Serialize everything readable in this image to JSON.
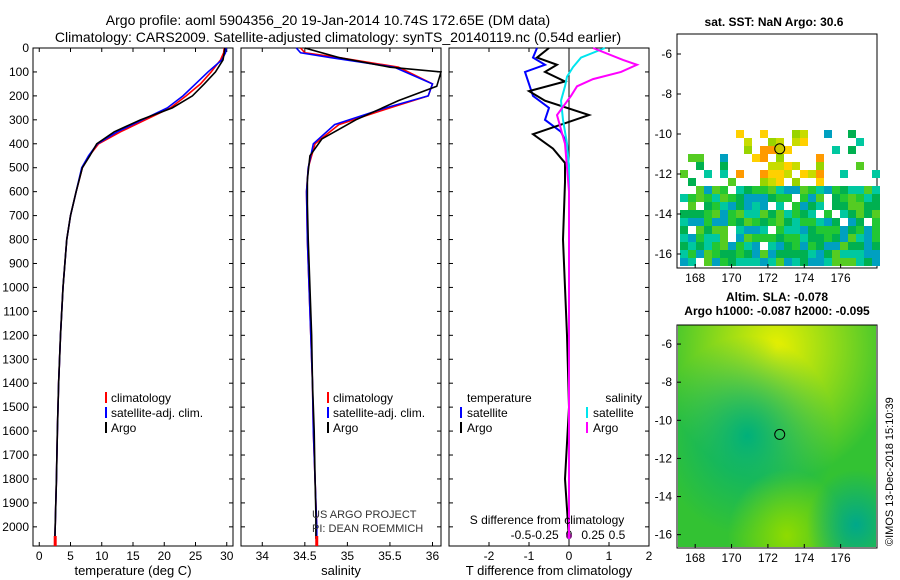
{
  "title_line1": "Argo profile: aoml 5904356_20 19-Jan-2014 10.74S 172.65E (DM data)",
  "title_line2": "Climatology: CARS2009. Satellite-adjusted climatology: synTS_20140119.nc (0.54d earlier)",
  "credit_line1": "US ARGO PROJECT",
  "credit_line2": "PI: DEAN ROEMMICH",
  "imos_stamp": "©IMOS 13-Dec-2018 15:10:39",
  "colors": {
    "climatology": "#ff0000",
    "satellite": "#0000ff",
    "argo": "#000000",
    "sal_satellite": "#00e5ee",
    "sal_argo": "#ff00ff"
  },
  "chart_data": [
    {
      "type": "line",
      "id": "temperature",
      "xlabel": "temperature (deg C)",
      "xlim": [
        -1,
        31
      ],
      "xticks": [
        0,
        5,
        10,
        15,
        20,
        25,
        30
      ],
      "ylim": [
        2080,
        0
      ],
      "yticks": [
        0,
        100,
        200,
        300,
        400,
        500,
        600,
        700,
        800,
        900,
        1000,
        1100,
        1200,
        1300,
        1400,
        1500,
        1600,
        1700,
        1800,
        1900,
        2000
      ],
      "legend": {
        "position": "lower-right",
        "labels": [
          "climatology",
          "satellite-adj. clim.",
          "Argo"
        ]
      },
      "series": [
        {
          "name": "climatology",
          "color": "#ff0000",
          "x": [
            29.6,
            29.5,
            29.0,
            27.5,
            25.8,
            23.5,
            21.0,
            17.0,
            13.0,
            9.5,
            8.0,
            6.9,
            5.9,
            5.0,
            4.4,
            3.8,
            3.4,
            3.1,
            2.9,
            2.75,
            2.65,
            2.55,
            2.5
          ],
          "y": [
            0,
            20,
            50,
            100,
            150,
            200,
            250,
            300,
            350,
            400,
            450,
            500,
            600,
            700,
            800,
            1000,
            1200,
            1400,
            1600,
            1800,
            1900,
            2000,
            2050
          ]
        },
        {
          "name": "satellite-adj. clim.",
          "color": "#0000ff",
          "x": [
            29.9,
            29.8,
            29.2,
            27.0,
            25.0,
            23.0,
            20.5,
            16.5,
            12.5,
            9.3,
            7.9,
            6.8,
            5.9,
            5.0,
            4.4,
            3.8,
            3.4,
            3.1,
            2.9,
            2.75,
            2.65,
            2.55,
            2.5
          ],
          "y": [
            0,
            20,
            50,
            100,
            150,
            200,
            250,
            300,
            350,
            400,
            450,
            500,
            600,
            700,
            800,
            1000,
            1200,
            1400,
            1600,
            1800,
            1900,
            2000,
            2050
          ]
        },
        {
          "name": "Argo",
          "color": "#000000",
          "x": [
            29.7,
            29.6,
            29.4,
            28.2,
            26.4,
            24.5,
            21.3,
            16.2,
            12.0,
            9.2,
            8.1,
            6.9,
            5.9,
            5.0,
            4.4,
            3.8,
            3.4,
            3.1,
            2.9,
            2.75,
            2.65,
            2.55,
            2.5
          ],
          "y": [
            0,
            20,
            50,
            100,
            150,
            200,
            250,
            300,
            350,
            400,
            450,
            500,
            600,
            700,
            800,
            1000,
            1200,
            1400,
            1600,
            1800,
            1900,
            2000,
            2050
          ]
        }
      ]
    },
    {
      "type": "line",
      "id": "salinity",
      "xlabel": "salinity",
      "xlim": [
        33.75,
        36.1
      ],
      "xticks": [
        34,
        34.5,
        35,
        35.5,
        36
      ],
      "ylim": [
        2080,
        0
      ],
      "legend": {
        "position": "lower-right",
        "labels": [
          "climatology",
          "satellite-adj. clim.",
          "Argo"
        ]
      },
      "series": [
        {
          "name": "climatology",
          "color": "#ff0000",
          "x": [
            34.45,
            34.5,
            34.9,
            35.6,
            36.0,
            35.95,
            35.5,
            34.9,
            34.62,
            34.54,
            34.52,
            34.53,
            34.55,
            34.57,
            34.59,
            34.6,
            34.62,
            34.63,
            34.64,
            34.64
          ],
          "y": [
            0,
            20,
            40,
            80,
            150,
            200,
            250,
            320,
            400,
            500,
            600,
            800,
            1000,
            1200,
            1400,
            1600,
            1800,
            1900,
            2000,
            2050
          ]
        },
        {
          "name": "satellite-adj. clim.",
          "color": "#0000ff",
          "x": [
            34.4,
            34.45,
            34.8,
            35.55,
            36.0,
            35.95,
            35.45,
            34.85,
            34.6,
            34.54,
            34.52,
            34.53,
            34.55,
            34.57,
            34.59,
            34.6,
            34.62,
            34.63,
            34.64,
            34.64
          ],
          "y": [
            0,
            20,
            40,
            80,
            150,
            200,
            250,
            320,
            400,
            500,
            600,
            800,
            1000,
            1200,
            1400,
            1600,
            1800,
            1900,
            2000,
            2050
          ]
        },
        {
          "name": "Argo",
          "color": "#000000",
          "x": [
            34.5,
            34.9,
            35.5,
            36.1,
            36.05,
            35.6,
            35.1,
            34.7,
            34.56,
            34.53,
            34.53,
            34.54,
            34.56,
            34.58,
            34.59,
            34.61,
            34.62,
            34.63,
            34.63
          ],
          "y": [
            0,
            40,
            80,
            100,
            160,
            220,
            300,
            380,
            450,
            550,
            650,
            800,
            1000,
            1200,
            1400,
            1600,
            1800,
            1950,
            2050
          ]
        }
      ]
    },
    {
      "type": "line",
      "id": "difference",
      "xlabel": "T difference from climatology",
      "xlabel_top": "S difference from climatology",
      "xlim": [
        -3,
        2
      ],
      "xticks": [
        -2,
        -1,
        0,
        1,
        2
      ],
      "xticks_top": [
        -0.5,
        -0.25,
        0,
        0.25,
        0.5
      ],
      "xticks_top_labels": [
        "-0.5",
        "-0.25",
        "0",
        "0.25",
        "0.5"
      ],
      "ylim": [
        2080,
        0
      ],
      "legend": {
        "temperature_title": "temperature",
        "salinity_title": "salinity",
        "labels": [
          "satellite",
          "Argo",
          "satellite",
          "Argo"
        ]
      },
      "series": [
        {
          "name": "temperature satellite",
          "color": "#0000ff",
          "x": [
            -0.8,
            -0.9,
            -0.6,
            -1.1,
            -1.0,
            -0.9,
            -0.5,
            -0.6,
            -0.2,
            -0.05,
            0,
            0,
            0,
            0,
            0
          ],
          "y": [
            0,
            40,
            70,
            100,
            150,
            200,
            250,
            300,
            350,
            400,
            500,
            600,
            800,
            1200,
            2050
          ]
        },
        {
          "name": "temperature Argo",
          "color": "#000000",
          "x": [
            -0.5,
            -0.8,
            -0.3,
            -0.6,
            -0.1,
            -1.0,
            -0.6,
            0.5,
            -0.9,
            -0.4,
            -0.1,
            -0.1,
            -0.15,
            -0.05,
            0,
            -0.1,
            0
          ],
          "y": [
            0,
            40,
            70,
            100,
            140,
            180,
            220,
            280,
            360,
            420,
            480,
            560,
            800,
            1200,
            1500,
            1800,
            2050
          ]
        },
        {
          "name": "salinity satellite",
          "color": "#00e5ee",
          "x": [
            0.9,
            0.3,
            0.1,
            -0.05,
            -0.1,
            -0.2,
            -0.15,
            -0.05,
            0,
            0,
            0,
            0
          ],
          "y": [
            0,
            40,
            80,
            120,
            160,
            220,
            300,
            400,
            500,
            800,
            1200,
            2050
          ]
        },
        {
          "name": "salinity Argo",
          "color": "#ff00ff",
          "x": [
            0.6,
            1.35,
            1.7,
            1.3,
            0.6,
            0.2,
            0.05,
            -0.3,
            -0.1,
            0,
            0,
            0
          ],
          "y": [
            0,
            50,
            70,
            100,
            130,
            160,
            200,
            280,
            400,
            600,
            1200,
            2050
          ]
        }
      ]
    },
    {
      "type": "heatmap",
      "id": "sst-map",
      "title": "sat. SST: NaN Argo: 30.6",
      "xticks": [
        168,
        170,
        172,
        174,
        176
      ],
      "yticks": [
        -6,
        -8,
        -10,
        -12,
        -14,
        -16
      ],
      "xlim": [
        167,
        178
      ],
      "ylim": [
        -16.7,
        -5
      ]
    },
    {
      "type": "heatmap",
      "id": "sla-map",
      "title_line1": "Altim. SLA: -0.078",
      "title_line2": "Argo h1000: -0.087 h2000: -0.095",
      "xticks": [
        168,
        170,
        172,
        174,
        176
      ],
      "yticks": [
        -6,
        -8,
        -10,
        -12,
        -14,
        -16
      ],
      "xlim": [
        167,
        178
      ],
      "ylim": [
        -16.7,
        -5
      ]
    }
  ],
  "argo_position": {
    "lon": 172.65,
    "lat": -10.74
  }
}
